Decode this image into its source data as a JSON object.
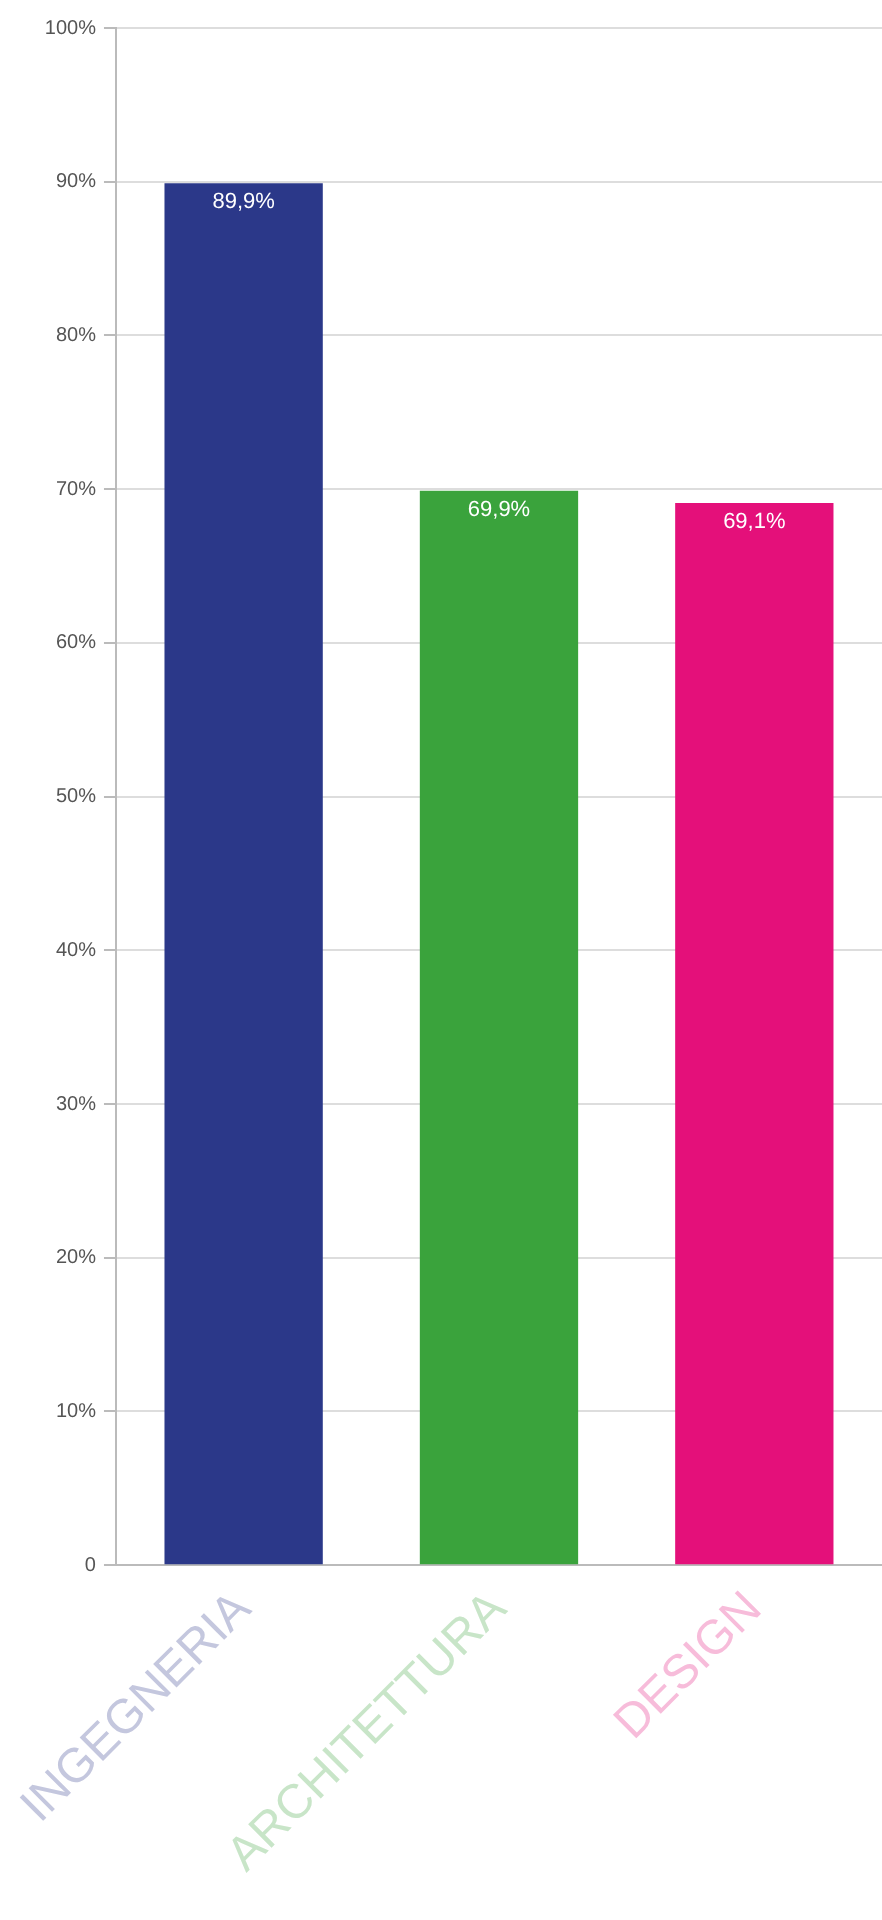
{
  "chart_data": {
    "type": "bar",
    "categories": [
      "INGEGNERIA",
      "ARCHITETTURA",
      "DESIGN"
    ],
    "values": [
      89.9,
      69.9,
      69.1
    ],
    "colors": [
      "#2b3889",
      "#3aa33c",
      "#e4107a"
    ],
    "value_labels": [
      "89,9%",
      "69,9%",
      "69,1%"
    ],
    "ylim": [
      0,
      100
    ],
    "yticks": [
      {
        "value": 0,
        "label": "0"
      },
      {
        "value": 10,
        "label": "10%"
      },
      {
        "value": 20,
        "label": "20%"
      },
      {
        "value": 30,
        "label": "30%"
      },
      {
        "value": 40,
        "label": "40%"
      },
      {
        "value": 50,
        "label": "50%"
      },
      {
        "value": 60,
        "label": "60%"
      },
      {
        "value": 70,
        "label": "70%"
      },
      {
        "value": 80,
        "label": "80%"
      },
      {
        "value": 90,
        "label": "90%"
      },
      {
        "value": 100,
        "label": "100%"
      }
    ],
    "grid": "y",
    "legend": false
  }
}
